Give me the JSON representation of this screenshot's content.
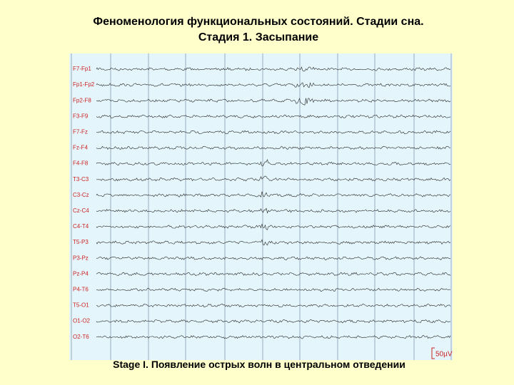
{
  "header": {
    "title": [
      "Феноменология функциональных состояний. Стадии сна.",
      "Стадия 1. Засыпание"
    ]
  },
  "eeg": {
    "channels": [
      "F7-Fp1",
      "Fp1-Fp2",
      "Fp2-F8",
      "F3-F9",
      "F7-Fz",
      "Fz-F4",
      "F4-F8",
      "T3-C3",
      "C3-Cz",
      "Cz-C4",
      "C4-T4",
      "T5-P3",
      "P3-Pz",
      "Pz-P4",
      "P4-T6",
      "T5-O1",
      "O1-O2",
      "O2-T6"
    ],
    "scale_label": "50µV"
  },
  "caption": "Stage I. Появление острых волн в центральном отведении"
}
